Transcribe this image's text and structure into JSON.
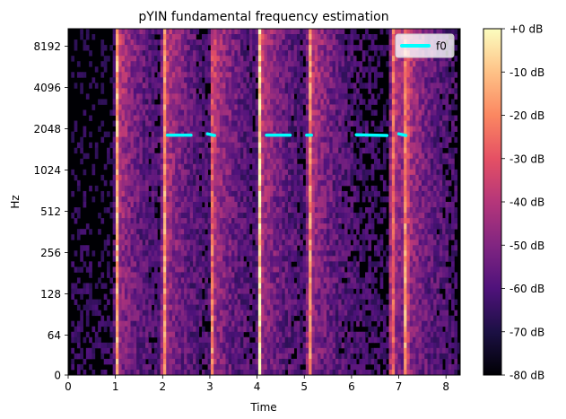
{
  "chart_data": {
    "type": "heatmap",
    "title": "pYIN fundamental frequency estimation",
    "xlabel": "Time",
    "ylabel": "Hz",
    "xlim": [
      0,
      8.3
    ],
    "x_ticks": [
      0,
      1,
      2,
      3,
      4,
      5,
      6,
      7,
      8
    ],
    "x_tick_labels": [
      "0",
      "1",
      "2",
      "3",
      "4",
      "5",
      "6",
      "7",
      "8"
    ],
    "y_scale": "log2",
    "y_ticks": [
      0,
      64,
      128,
      256,
      512,
      1024,
      2048,
      4096,
      8192
    ],
    "y_tick_labels": [
      "0",
      "64",
      "128",
      "256",
      "512",
      "1024",
      "2048",
      "4096",
      "8192"
    ],
    "colormap": "magma",
    "colorbar": {
      "range_db": [
        -80,
        0
      ],
      "ticks": [
        0,
        -10,
        -20,
        -30,
        -40,
        -50,
        -60,
        -70,
        -80
      ],
      "tick_labels": [
        "+0 dB",
        "-10 dB",
        "-20 dB",
        "-30 dB",
        "-40 dB",
        "-50 dB",
        "-60 dB",
        "-70 dB",
        "-80 dB"
      ]
    },
    "onsets_time": [
      1.02,
      2.02,
      3.05,
      4.05,
      5.1,
      6.85,
      7.15
    ],
    "f0_series": {
      "name": "f0",
      "color": "#00ffff",
      "segments": [
        {
          "t": [
            2.1,
            2.6
          ],
          "hz": [
            1840,
            1840
          ]
        },
        {
          "t": [
            2.95,
            3.1
          ],
          "hz": [
            1880,
            1830
          ]
        },
        {
          "t": [
            4.2,
            4.7
          ],
          "hz": [
            1840,
            1840
          ]
        },
        {
          "t": [
            5.05,
            5.15
          ],
          "hz": [
            1840,
            1840
          ]
        },
        {
          "t": [
            6.1,
            6.75
          ],
          "hz": [
            1850,
            1830
          ]
        },
        {
          "t": [
            7.0,
            7.15
          ],
          "hz": [
            1880,
            1830
          ]
        }
      ]
    },
    "legend": {
      "entries": [
        "f0"
      ],
      "placement": "top-right"
    }
  }
}
